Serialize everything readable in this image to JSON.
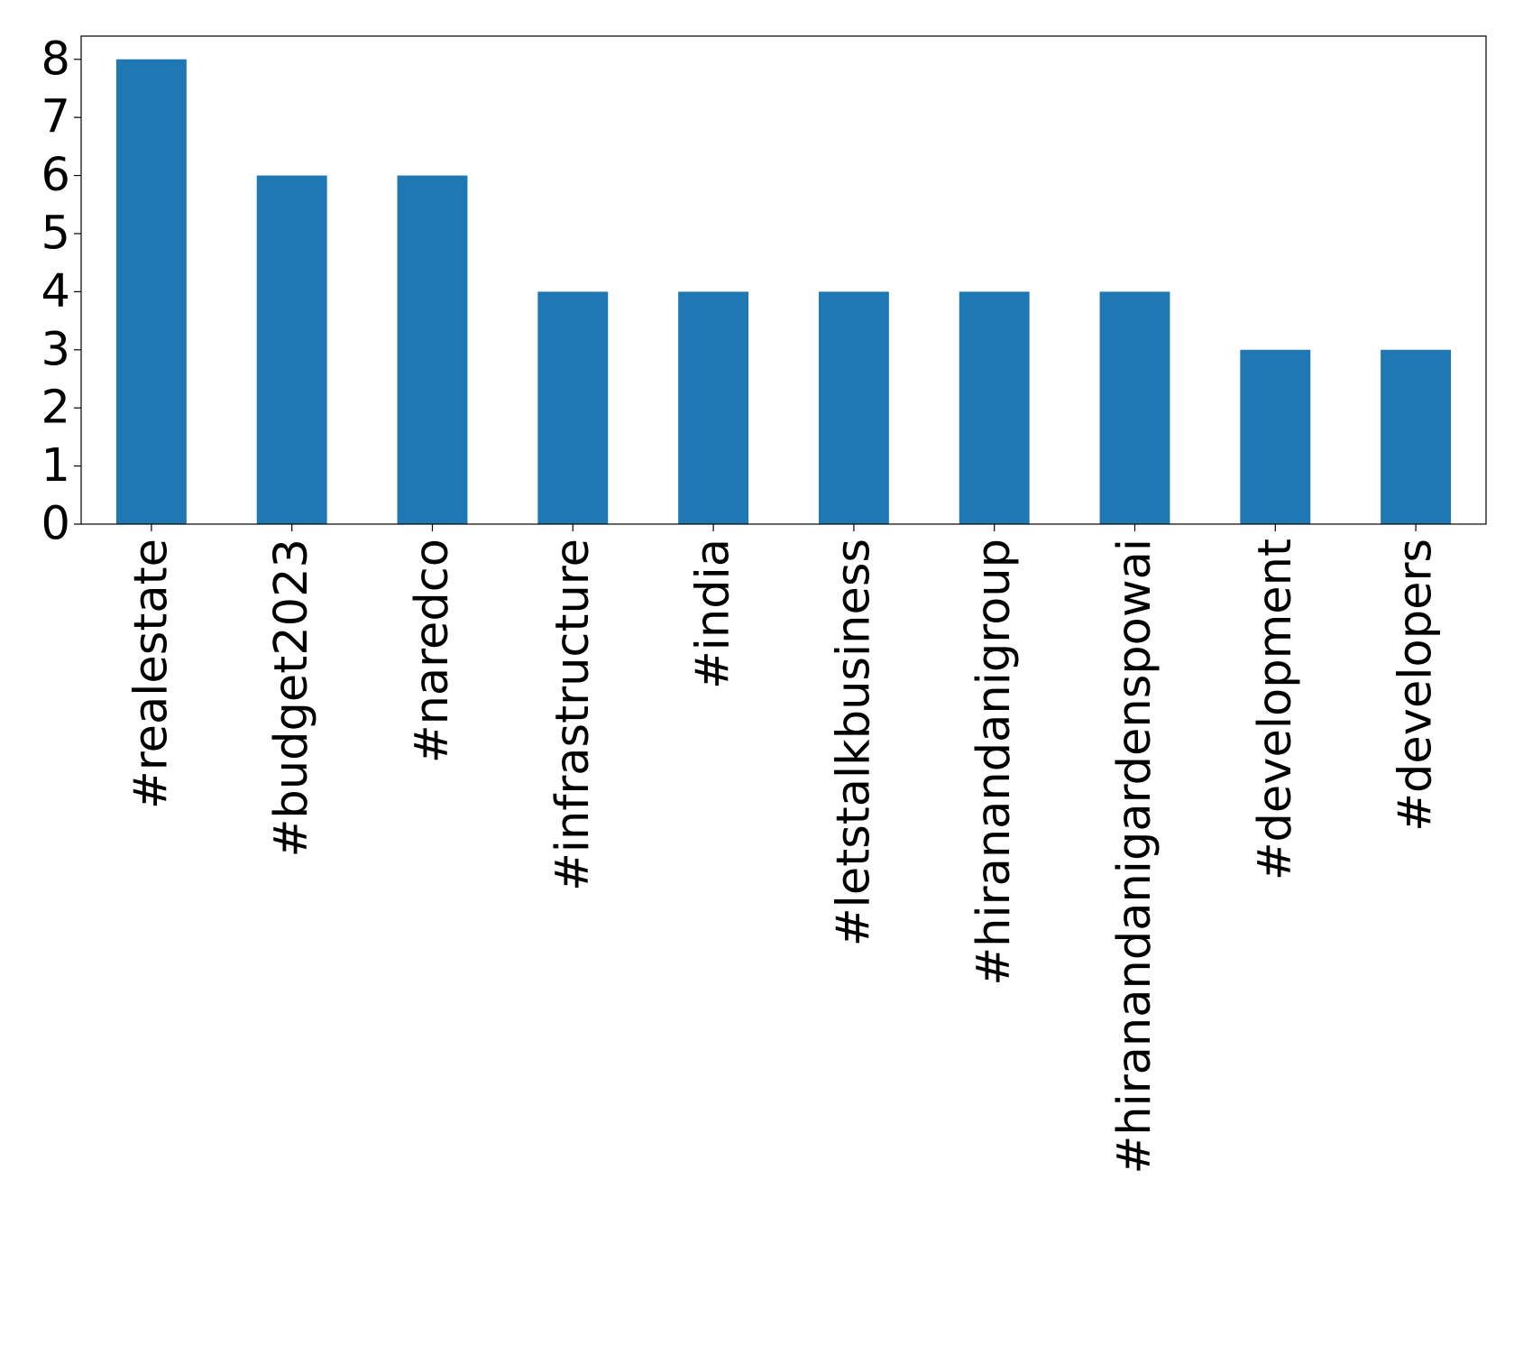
{
  "chart_data": {
    "type": "bar",
    "categories": [
      "#realestate",
      "#budget2023",
      "#naredco",
      "#infrastructure",
      "#india",
      "#letstalkbusiness",
      "#hiranandanigroup",
      "#hiranandanigardenspowai",
      "#development",
      "#developers"
    ],
    "values": [
      8,
      6,
      6,
      4,
      4,
      4,
      4,
      4,
      3,
      3
    ],
    "color": "#1f77b4",
    "ylim": [
      0,
      8.4
    ],
    "yticks": [
      0,
      1,
      2,
      3,
      4,
      5,
      6,
      7,
      8
    ],
    "grid": false
  }
}
